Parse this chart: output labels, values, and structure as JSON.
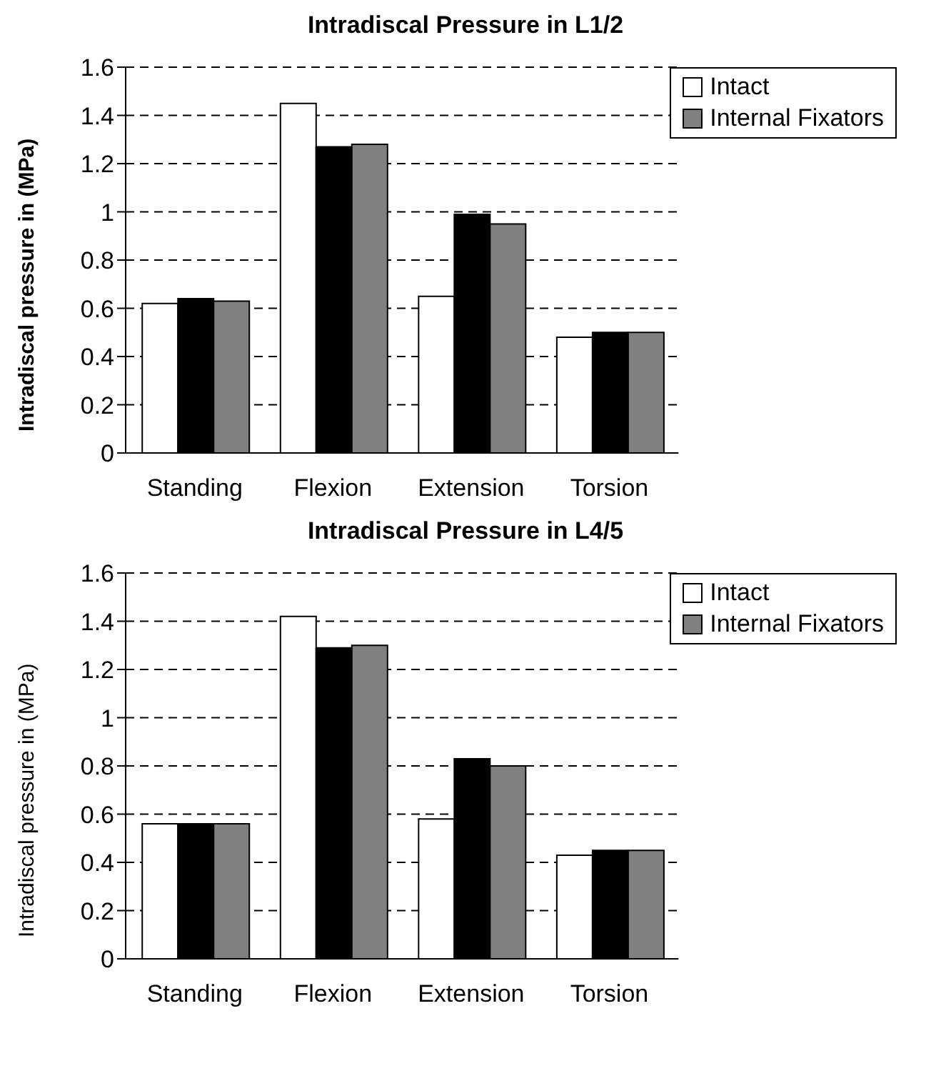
{
  "chart_data": [
    {
      "type": "bar",
      "title": "Intradiscal Pressure in L1/2",
      "ylabel": "Intradiscal pressure in (MPa)",
      "categories": [
        "Standing",
        "Flexion",
        "Extension",
        "Torsion"
      ],
      "series": [
        {
          "name": "Intact",
          "color": "#ffffff",
          "values": [
            0.62,
            1.45,
            0.65,
            0.48
          ]
        },
        {
          "color": "#000000",
          "values": [
            0.64,
            1.27,
            0.99,
            0.5
          ]
        },
        {
          "name": "Internal Fixators",
          "color": "#808080",
          "values": [
            0.63,
            1.28,
            0.95,
            0.5
          ]
        }
      ],
      "ylim": [
        0,
        1.6
      ],
      "yticks": [
        0,
        0.2,
        0.4,
        0.6,
        0.8,
        1,
        1.2,
        1.4,
        1.6
      ],
      "grid": "y",
      "legend": "top right"
    },
    {
      "type": "bar",
      "title": "Intradiscal Pressure in L4/5",
      "ylabel": "Intradiscal pressure in (MPa)",
      "categories": [
        "Standing",
        "Flexion",
        "Extension",
        "Torsion"
      ],
      "series": [
        {
          "name": "Intact",
          "color": "#ffffff",
          "values": [
            0.56,
            1.42,
            0.58,
            0.43
          ]
        },
        {
          "color": "#000000",
          "values": [
            0.56,
            1.29,
            0.83,
            0.45
          ]
        },
        {
          "name": "Internal Fixators",
          "color": "#808080",
          "values": [
            0.56,
            1.3,
            0.8,
            0.45
          ]
        }
      ],
      "ylim": [
        0,
        1.6
      ],
      "yticks": [
        0,
        0.2,
        0.4,
        0.6,
        0.8,
        1,
        1.2,
        1.4,
        1.6
      ],
      "grid": "y",
      "legend": "top right"
    }
  ]
}
